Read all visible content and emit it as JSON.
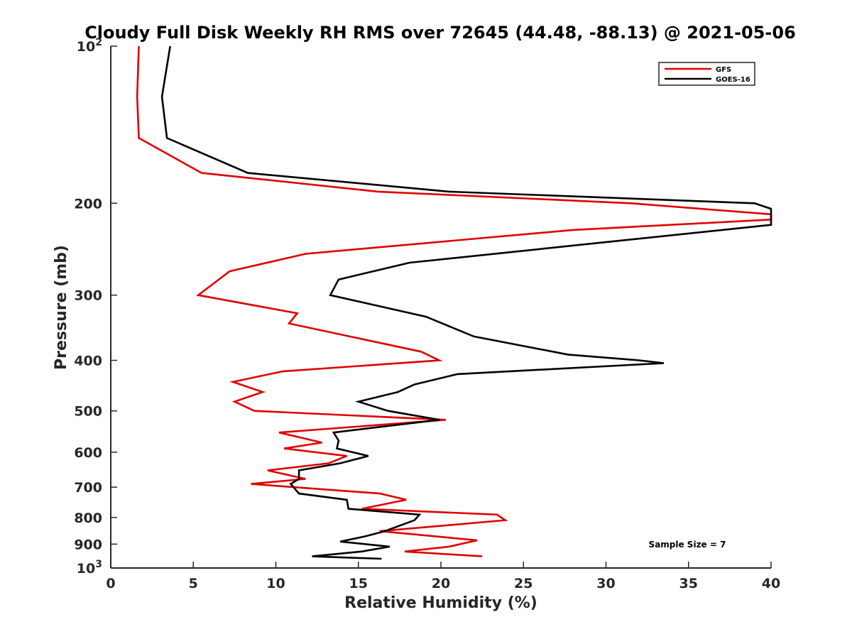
{
  "chart_data": {
    "type": "line",
    "title": "Cloudy Full Disk Weekly RH RMS over 72645 (44.48, -88.13) @ 2021-05-06",
    "xlabel": "Relative Humidity (%)",
    "ylabel": "Pressure (mb)",
    "xlim": [
      0,
      40
    ],
    "ylim": [
      100,
      1000
    ],
    "y_scale": "log",
    "y_reversed": true,
    "grid": false,
    "legend_position": "top-right",
    "x_ticks": [
      0,
      5,
      10,
      15,
      20,
      25,
      30,
      35,
      40
    ],
    "x_tick_labels": [
      "0",
      "5",
      "10",
      "15",
      "20",
      "25",
      "30",
      "35",
      "40"
    ],
    "y_ticks": [
      100,
      200,
      300,
      400,
      500,
      600,
      700,
      800,
      900,
      1000
    ],
    "y_tick_labels": [
      {
        "base": "10",
        "exp": "2"
      },
      {
        "base": "200",
        "exp": ""
      },
      {
        "base": "300",
        "exp": ""
      },
      {
        "base": "400",
        "exp": ""
      },
      {
        "base": "500",
        "exp": ""
      },
      {
        "base": "600",
        "exp": ""
      },
      {
        "base": "700",
        "exp": ""
      },
      {
        "base": "800",
        "exp": ""
      },
      {
        "base": "900",
        "exp": ""
      },
      {
        "base": "10",
        "exp": "3"
      }
    ],
    "annotation": "Sample Size = 7",
    "series": [
      {
        "name": "GFS",
        "color": "#e00000",
        "points": [
          [
            1.7,
            100
          ],
          [
            1.6,
            125
          ],
          [
            1.7,
            150
          ],
          [
            5.5,
            175
          ],
          [
            16.2,
            190
          ],
          [
            31.5,
            200
          ],
          [
            40,
            210
          ],
          [
            40,
            215
          ],
          [
            28,
            225
          ],
          [
            11.8,
            250
          ],
          [
            7.2,
            270
          ],
          [
            5.3,
            300
          ],
          [
            11.3,
            325
          ],
          [
            10.8,
            340
          ],
          [
            18.8,
            385
          ],
          [
            19.9,
            400
          ],
          [
            10.4,
            420
          ],
          [
            7.4,
            440
          ],
          [
            9.2,
            460
          ],
          [
            7.5,
            480
          ],
          [
            8.7,
            500
          ],
          [
            20.3,
            520
          ],
          [
            10.2,
            550
          ],
          [
            12.8,
            575
          ],
          [
            10.5,
            590
          ],
          [
            14.3,
            610
          ],
          [
            13.2,
            630
          ],
          [
            9.5,
            650
          ],
          [
            11.8,
            675
          ],
          [
            8.5,
            690
          ],
          [
            16.3,
            720
          ],
          [
            17.9,
            740
          ],
          [
            15.2,
            770
          ],
          [
            23.4,
            790
          ],
          [
            23.9,
            810
          ],
          [
            16.3,
            850
          ],
          [
            22.2,
            885
          ],
          [
            20.5,
            910
          ],
          [
            17.8,
            930
          ],
          [
            22.5,
            950
          ]
        ]
      },
      {
        "name": "GOES-16",
        "color": "#000000",
        "points": [
          [
            3.6,
            100
          ],
          [
            3.1,
            125
          ],
          [
            3.4,
            150
          ],
          [
            8.3,
            175
          ],
          [
            20.5,
            190
          ],
          [
            39,
            200
          ],
          [
            40,
            205
          ],
          [
            40,
            220
          ],
          [
            18.1,
            260
          ],
          [
            13.8,
            280
          ],
          [
            13.3,
            300
          ],
          [
            19.1,
            330
          ],
          [
            22,
            360
          ],
          [
            27.7,
            390
          ],
          [
            32,
            400
          ],
          [
            33.5,
            405
          ],
          [
            21,
            425
          ],
          [
            18.4,
            445
          ],
          [
            17.4,
            460
          ],
          [
            15,
            480
          ],
          [
            16.8,
            500
          ],
          [
            19.9,
            520
          ],
          [
            13.5,
            550
          ],
          [
            13.8,
            570
          ],
          [
            13.7,
            590
          ],
          [
            15.6,
            610
          ],
          [
            13.9,
            630
          ],
          [
            11.4,
            650
          ],
          [
            11.4,
            675
          ],
          [
            10.9,
            690
          ],
          [
            11.4,
            720
          ],
          [
            14.3,
            740
          ],
          [
            14.4,
            770
          ],
          [
            18.7,
            790
          ],
          [
            18.4,
            810
          ],
          [
            16.6,
            850
          ],
          [
            15.4,
            870
          ],
          [
            13.9,
            890
          ],
          [
            16.9,
            910
          ],
          [
            15.2,
            930
          ],
          [
            12.2,
            950
          ],
          [
            16.4,
            960
          ]
        ]
      }
    ]
  }
}
